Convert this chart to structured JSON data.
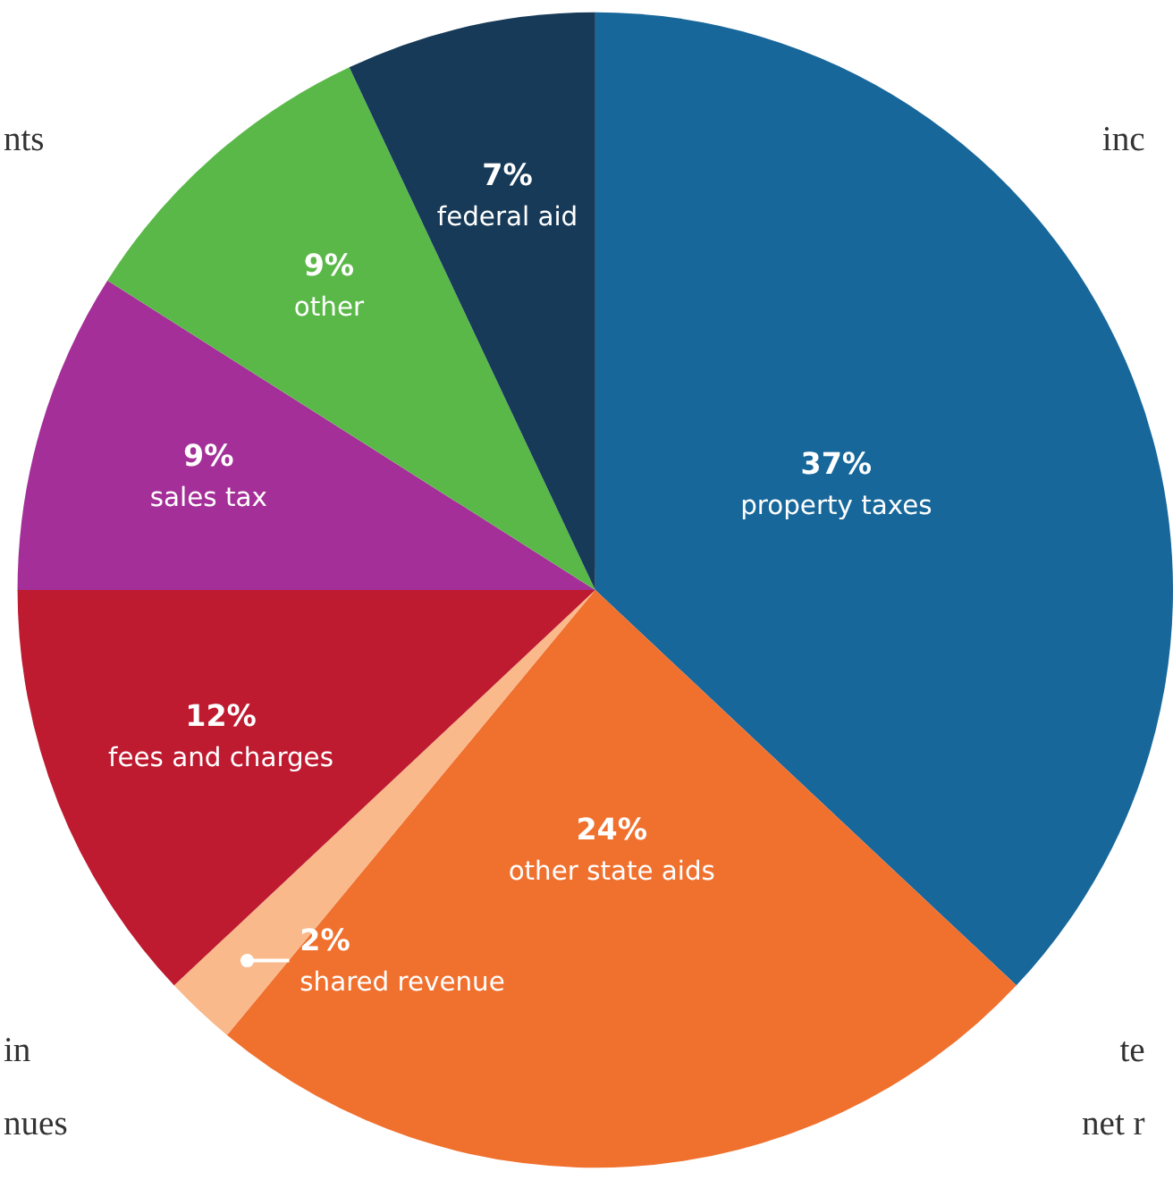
{
  "chart_data": {
    "type": "pie",
    "categories": [
      "property taxes",
      "other state aids",
      "shared revenue",
      "fees and charges",
      "sales tax",
      "other",
      "federal aid"
    ],
    "values": [
      37,
      24,
      2,
      12,
      9,
      9,
      7
    ],
    "value_labels": [
      "37%",
      "24%",
      "2%",
      "12%",
      "9%",
      "9%",
      "7%"
    ],
    "colors": [
      "#17679a",
      "#f0702e",
      "#f9b98a",
      "#be1a30",
      "#a42f98",
      "#5ab848",
      "#163a58"
    ],
    "legend": false,
    "annotations": [
      "nts",
      "inc",
      "in",
      "nues",
      "te",
      "net r"
    ]
  }
}
